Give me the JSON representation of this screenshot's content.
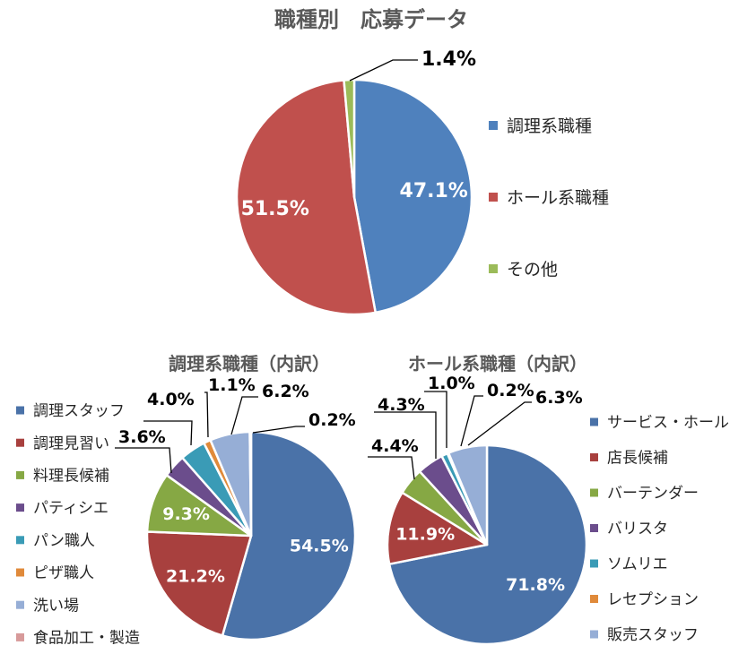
{
  "chart_data": [
    {
      "type": "pie",
      "title": "職種別　応募データ",
      "categories": [
        "調理系職種",
        "ホール系職種",
        "その他"
      ],
      "values": [
        47.1,
        51.5,
        1.4
      ],
      "labels": [
        "47.1%",
        "51.5%",
        "1.4%"
      ],
      "colors": [
        "#4f81bd",
        "#c0504d",
        "#9bbb59"
      ],
      "legend_position": "right"
    },
    {
      "type": "pie",
      "title": "調理系職種（内訳）",
      "categories": [
        "調理スタッフ",
        "調理見習い",
        "料理長候補",
        "パティシエ",
        "パン職人",
        "ピザ職人",
        "洗い場",
        "食品加工・製造"
      ],
      "values": [
        54.5,
        21.2,
        9.3,
        3.6,
        4.0,
        1.1,
        6.2,
        0.2
      ],
      "labels": [
        "54.5%",
        "21.2%",
        "9.3%",
        "3.6%",
        "4.0%",
        "1.1%",
        "6.2%",
        "0.2%"
      ],
      "colors": [
        "#4a72a8",
        "#a8403e",
        "#86a844",
        "#6b4d8c",
        "#3a9bb6",
        "#e08a3a",
        "#96aed6",
        "#d79a9a"
      ],
      "legend_position": "left"
    },
    {
      "type": "pie",
      "title": "ホール系職種（内訳）",
      "categories": [
        "サービス・ホール",
        "店長候補",
        "バーテンダー",
        "バリスタ",
        "ソムリエ",
        "レセプション",
        "販売スタッフ"
      ],
      "values": [
        71.8,
        11.9,
        4.4,
        4.3,
        1.0,
        0.2,
        6.3
      ],
      "labels": [
        "71.8%",
        "11.9%",
        "4.4%",
        "4.3%",
        "1.0%",
        "0.2%",
        "6.3%"
      ],
      "colors": [
        "#4a72a8",
        "#a8403e",
        "#86a844",
        "#6b4d8c",
        "#3a9bb6",
        "#e08a3a",
        "#96aed6"
      ],
      "legend_position": "right"
    }
  ]
}
